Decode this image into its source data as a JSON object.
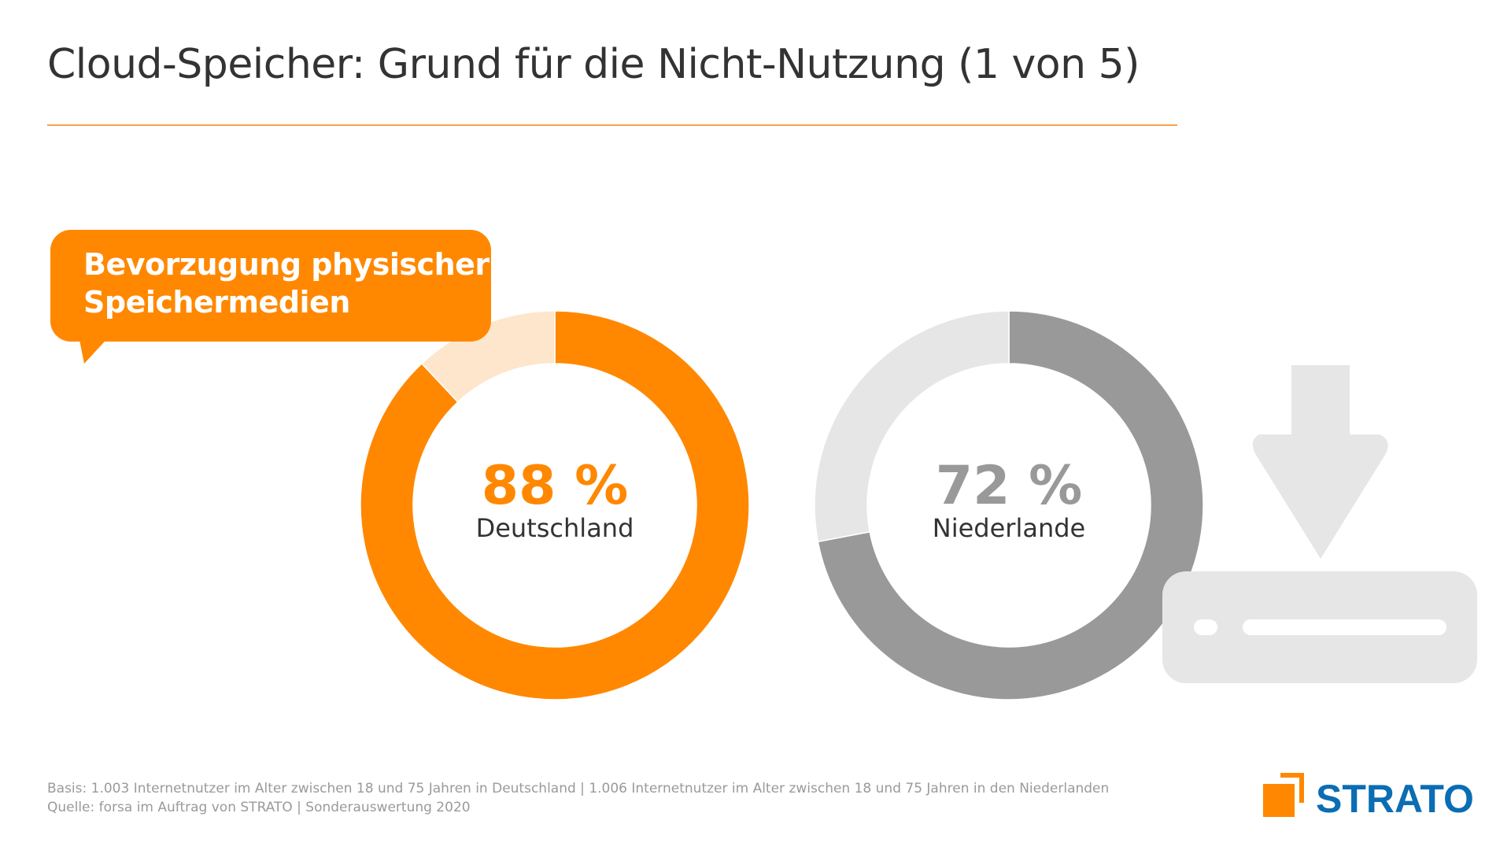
{
  "title": "Cloud-Speicher: Grund für die Nicht-Nutzung (1 von 5)",
  "callout": {
    "line1": "Bevorzugung physischer",
    "line2": "Speichermedien"
  },
  "chart_data": {
    "type": "pie",
    "variant": "donut",
    "series": [
      {
        "name": "Deutschland",
        "value": 88,
        "label": "88 %",
        "color": "#ff8800",
        "rest_color": "#fde6cc"
      },
      {
        "name": "Niederlande",
        "value": 72,
        "label": "72 %",
        "color": "#999999",
        "rest_color": "#e6e6e6"
      }
    ],
    "unit": "%"
  },
  "icon": "download-to-drive-icon",
  "footer": {
    "basis": "Basis: 1.003 Internetnutzer im Alter zwischen 18 und 75 Jahren in Deutschland | 1.006 Internetnutzer im Alter zwischen 18 und 75 Jahren in den Niederlanden",
    "source": "Quelle: forsa im Auftrag von STRATO | Sonderauswertung 2020"
  },
  "logo": {
    "text": "STRATO",
    "mark_color": "#ff8800",
    "text_color": "#0b6db3"
  }
}
